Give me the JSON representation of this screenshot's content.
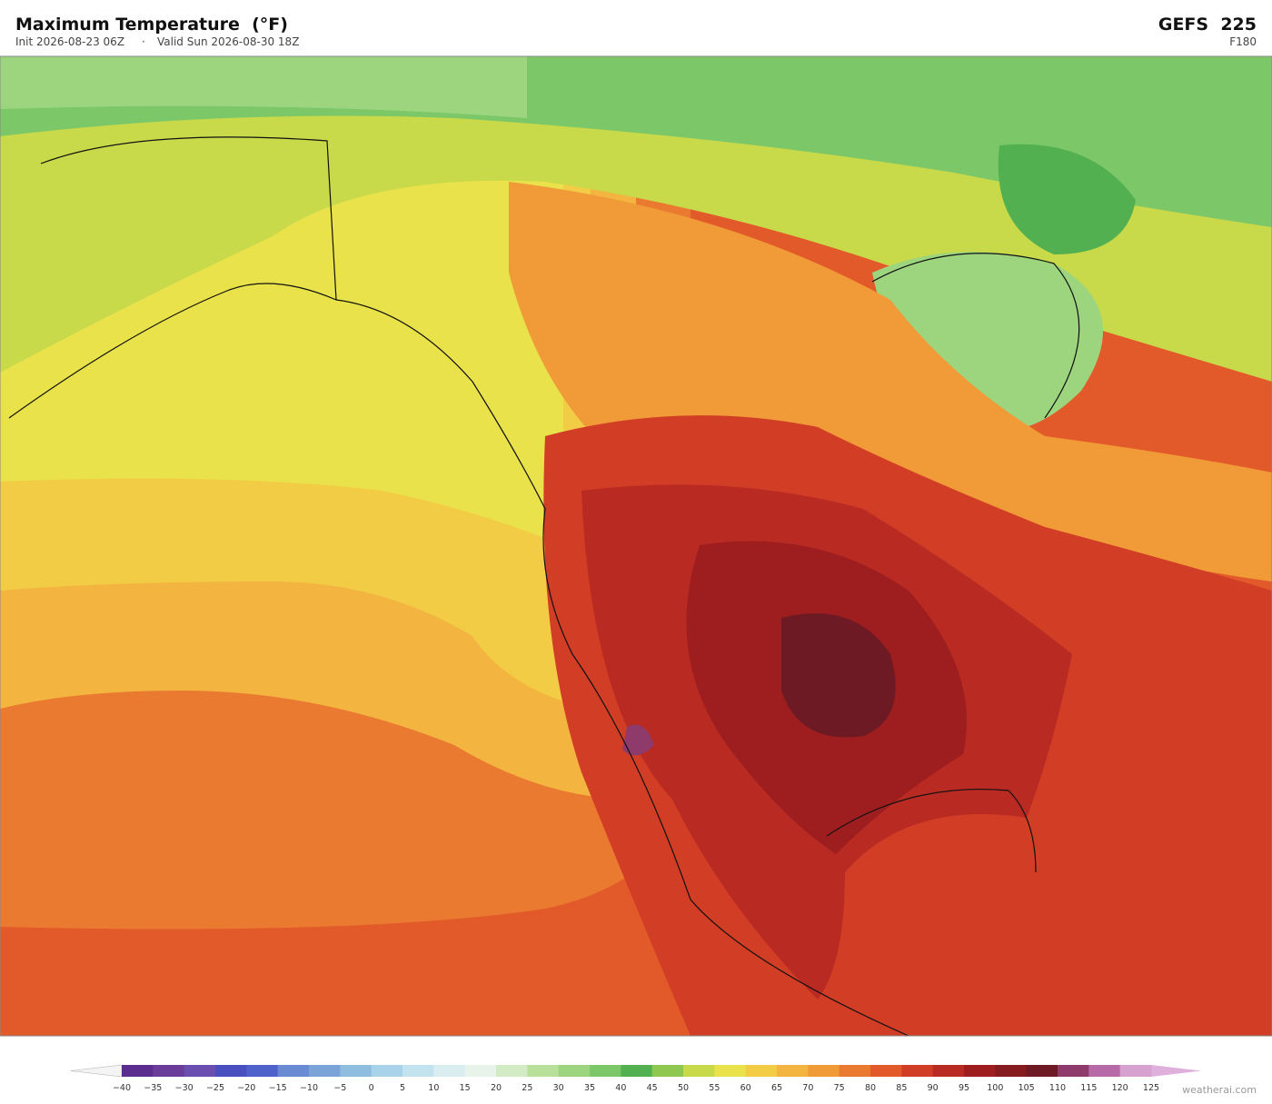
{
  "header": {
    "title": "Maximum Temperature  (°F)",
    "init": "Init 2026-08-23 06Z",
    "separator": "·",
    "valid": "Valid Sun 2026-08-30 18Z",
    "model": "GEFS  225",
    "forecast_hour": "F180"
  },
  "colorbar": {
    "ticks": [
      "−40",
      "−35",
      "−30",
      "−25",
      "−20",
      "−15",
      "−10",
      "−5",
      "0",
      "5",
      "10",
      "15",
      "20",
      "25",
      "30",
      "35",
      "40",
      "45",
      "50",
      "55",
      "60",
      "65",
      "70",
      "75",
      "80",
      "85",
      "90",
      "95",
      "100",
      "105",
      "110",
      "115",
      "120",
      "125"
    ],
    "colors": [
      "#5b2d8e",
      "#6a3d9a",
      "#6b4fb0",
      "#4a4fc0",
      "#4f62cc",
      "#6a8ad4",
      "#7aa3d8",
      "#8fbde0",
      "#a8d3ea",
      "#c3e3ef",
      "#daeef2",
      "#e8f4ea",
      "#d2ebc5",
      "#b9e09a",
      "#9dd57f",
      "#7cc868",
      "#52b050",
      "#8fc850",
      "#c8d94a",
      "#e9e24a",
      "#f2cc45",
      "#f3b540",
      "#f09a38",
      "#ea7a30",
      "#e35a2a",
      "#d23d25",
      "#b92a22",
      "#9e1e20",
      "#851a1f",
      "#6e1a25",
      "#8e3a6a",
      "#b86aa8",
      "#d8a2d0"
    ],
    "under_color": "#f4f4f4",
    "over_color": "#e0b0dc"
  },
  "watermark": "weatherai.com"
}
